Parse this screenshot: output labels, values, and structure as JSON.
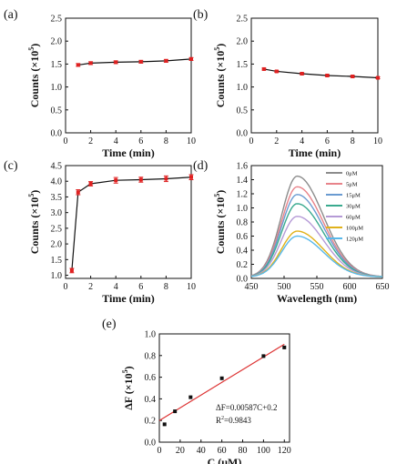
{
  "chart_data": [
    {
      "panel": "(a)",
      "type": "line",
      "xlabel": "Time (min)",
      "ylabel": "Counts (×10",
      "ylabel_exp": "5",
      "ylabel_close": ")",
      "xlim": [
        0,
        10
      ],
      "ylim": [
        0,
        2.5
      ],
      "xticks": [
        0,
        2,
        4,
        6,
        8,
        10
      ],
      "yticks": [
        0.0,
        0.5,
        1.0,
        1.5,
        2.0,
        2.5
      ],
      "ytick_labels": [
        "0.0",
        "0.5",
        "1.0",
        "1.5",
        "2.0",
        "2.5"
      ],
      "series": [
        {
          "x": [
            1,
            2,
            4,
            6,
            8,
            10
          ],
          "y": [
            1.48,
            1.52,
            1.54,
            1.55,
            1.57,
            1.61
          ],
          "err": [
            0.03,
            0.03,
            0.03,
            0.03,
            0.03,
            0.03
          ]
        }
      ]
    },
    {
      "panel": "(b)",
      "type": "line",
      "xlabel": "Time (min)",
      "ylabel": "Counts (×10",
      "ylabel_exp": "5",
      "ylabel_close": ")",
      "xlim": [
        0,
        10
      ],
      "ylim": [
        0,
        2.5
      ],
      "xticks": [
        0,
        2,
        4,
        6,
        8,
        10
      ],
      "yticks": [
        0.0,
        0.5,
        1.0,
        1.5,
        2.0,
        2.5
      ],
      "ytick_labels": [
        "0.0",
        "0.5",
        "1.0",
        "1.5",
        "2.0",
        "2.5"
      ],
      "series": [
        {
          "x": [
            1,
            2,
            4,
            6,
            8,
            10
          ],
          "y": [
            1.39,
            1.34,
            1.29,
            1.25,
            1.23,
            1.2
          ],
          "err": [
            0.02,
            0.02,
            0.02,
            0.02,
            0.02,
            0.02
          ]
        }
      ]
    },
    {
      "panel": "(c)",
      "type": "line",
      "xlabel": "Time (min)",
      "ylabel": "Counts (×10",
      "ylabel_exp": "5",
      "ylabel_close": ")",
      "xlim": [
        0,
        10
      ],
      "ylim": [
        0.9,
        4.5
      ],
      "xticks": [
        0,
        2,
        4,
        6,
        8,
        10
      ],
      "yticks": [
        1.0,
        1.5,
        2.0,
        2.5,
        3.0,
        3.5,
        4.0,
        4.5
      ],
      "ytick_labels": [
        "1.0",
        "1.5",
        "2.0",
        "2.5",
        "3.0",
        "3.5",
        "4.0",
        "4.5"
      ],
      "series": [
        {
          "x": [
            0.5,
            1,
            2,
            4,
            6,
            8,
            10
          ],
          "y": [
            1.15,
            3.65,
            3.92,
            4.03,
            4.05,
            4.08,
            4.13
          ],
          "err": [
            0.07,
            0.08,
            0.07,
            0.09,
            0.08,
            0.09,
            0.08
          ]
        }
      ]
    },
    {
      "panel": "(d)",
      "type": "line",
      "xlabel": "Wavelength (nm)",
      "ylabel": "Counts (×10",
      "ylabel_exp": "5",
      "ylabel_close": ")",
      "xlim": [
        450,
        650
      ],
      "ylim": [
        0,
        1.6
      ],
      "xticks": [
        450,
        500,
        550,
        600,
        650
      ],
      "yticks": [
        0.0,
        0.2,
        0.4,
        0.6,
        0.8,
        1.0,
        1.2,
        1.4,
        1.6
      ],
      "ytick_labels": [
        "0.0",
        "0.2",
        "0.4",
        "0.6",
        "0.8",
        "1.0",
        "1.2",
        "1.4",
        "1.6"
      ],
      "peak_wavelength": 520,
      "series": [
        {
          "name": "0μM",
          "peak": 1.45,
          "color": "#8c8c8c"
        },
        {
          "name": "5μM",
          "peak": 1.3,
          "color": "#e8838a"
        },
        {
          "name": "15μM",
          "peak": 1.19,
          "color": "#6a9bd1"
        },
        {
          "name": "30μM",
          "peak": 1.06,
          "color": "#3aaa8f"
        },
        {
          "name": "60μM",
          "peak": 0.88,
          "color": "#b59ad6"
        },
        {
          "name": "100μM",
          "peak": 0.67,
          "color": "#e0b21b"
        },
        {
          "name": "120μM",
          "peak": 0.6,
          "color": "#58b8ea"
        }
      ]
    },
    {
      "panel": "(e)",
      "type": "scatter",
      "xlabel": "C (μM)",
      "ylabel": "ΔF (×10",
      "ylabel_exp": "5",
      "ylabel_close": ")",
      "xlim": [
        0,
        125
      ],
      "ylim": [
        0,
        1.0
      ],
      "xticks": [
        0,
        20,
        40,
        60,
        80,
        100,
        120
      ],
      "yticks": [
        0.0,
        0.2,
        0.4,
        0.6,
        0.8,
        1.0
      ],
      "ytick_labels": [
        "0.0",
        "0.2",
        "0.4",
        "0.6",
        "0.8",
        "1.0"
      ],
      "series": [
        {
          "x": [
            5,
            15,
            30,
            60,
            100,
            120
          ],
          "y": [
            0.165,
            0.285,
            0.415,
            0.59,
            0.795,
            0.875
          ],
          "err": [
            0.015,
            0.015,
            0.015,
            0.015,
            0.015,
            0.015
          ]
        }
      ],
      "fit": {
        "slope": 0.00587,
        "intercept": 0.2,
        "x": [
          0,
          120
        ]
      },
      "equation": "ΔF=0.00587C+0.2",
      "r2_label": "R",
      "r2_exp": "2",
      "r2_value": "=0.9843"
    }
  ]
}
